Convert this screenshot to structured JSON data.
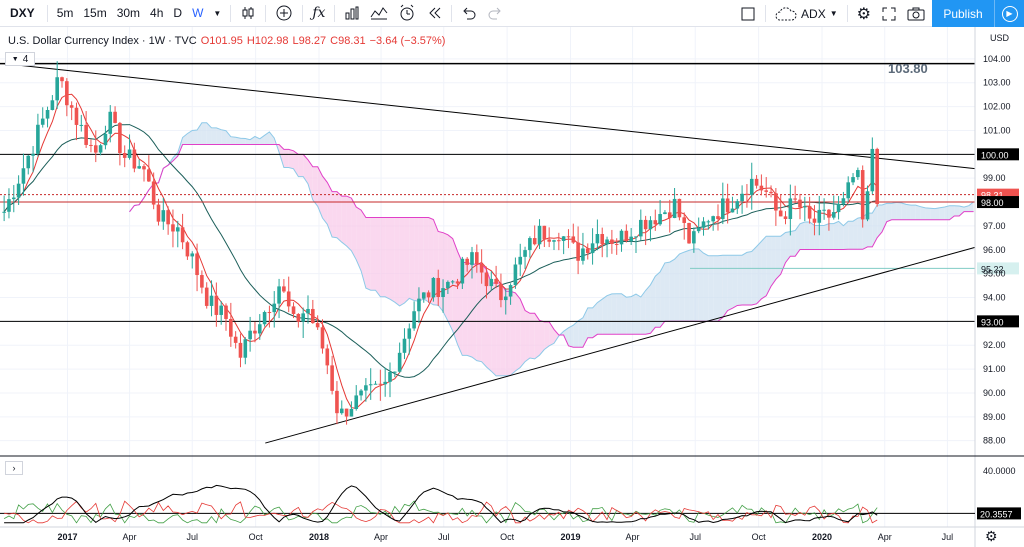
{
  "toolbar": {
    "symbol": "DXY",
    "intervals": [
      "5m",
      "15m",
      "30m",
      "4h",
      "D",
      "W"
    ],
    "active_interval": "W",
    "compare_label": "ADX",
    "publish_label": "Publish"
  },
  "legend": {
    "name": "U.S. Dollar Currency Index · 1W · TVC",
    "open": "O101.95",
    "high": "H102.98",
    "low": "L98.27",
    "close": "C98.31",
    "change": "−3.64 (−3.57%)"
  },
  "indicator_count": "4",
  "currency": "USD",
  "colors": {
    "up": "#26a69a",
    "down": "#ef5350",
    "cloud_green": "#cfe0f0",
    "cloud_red": "#f8c8e8",
    "ma_fast": "#e53935",
    "ma_slow": "#1b5e59",
    "span_a": "#8ec9e8",
    "span_b": "#e040c8",
    "trend": "#000000"
  },
  "chart_data": {
    "type": "candlestick",
    "title": "U.S. Dollar Currency Index · 1W · TVC",
    "ylim": [
      87.4,
      105.0
    ],
    "y_ticks": [
      88,
      89,
      90,
      91,
      92,
      93,
      94,
      95,
      96,
      97,
      98,
      99,
      100,
      101,
      102,
      103,
      104
    ],
    "y_tick_labels": [
      "88.00",
      "89.00",
      "90.00",
      "91.00",
      "92.00",
      "93.00",
      "94.00",
      "95.00",
      "96.00",
      "97.00",
      "98.00",
      "99.00",
      "100.00",
      "101.00",
      "102.00",
      "103.00",
      "104.00"
    ],
    "x_ticks": [
      {
        "date": "2017-01-01",
        "label": "2017"
      },
      {
        "date": "2017-04-01",
        "label": "Apr"
      },
      {
        "date": "2017-07-01",
        "label": "Jul"
      },
      {
        "date": "2017-10-01",
        "label": "Oct"
      },
      {
        "date": "2018-01-01",
        "label": "2018"
      },
      {
        "date": "2018-04-01",
        "label": "Apr"
      },
      {
        "date": "2018-07-01",
        "label": "Jul"
      },
      {
        "date": "2018-10-01",
        "label": "Oct"
      },
      {
        "date": "2019-01-01",
        "label": "2019"
      },
      {
        "date": "2019-04-01",
        "label": "Apr"
      },
      {
        "date": "2019-07-01",
        "label": "Jul"
      },
      {
        "date": "2019-10-01",
        "label": "Oct"
      },
      {
        "date": "2020-01-01",
        "label": "2020"
      },
      {
        "date": "2020-04-01",
        "label": "Apr"
      },
      {
        "date": "2020-07-01",
        "label": "Jul"
      }
    ],
    "price_path": [
      [
        "2016-10-01",
        97.6
      ],
      [
        "2016-11-15",
        100.6
      ],
      [
        "2016-12-20",
        103.2
      ],
      [
        "2017-01-15",
        101.4
      ],
      [
        "2017-02-10",
        100.0
      ],
      [
        "2017-03-01",
        101.6
      ],
      [
        "2017-03-25",
        99.9
      ],
      [
        "2017-04-20",
        99.5
      ],
      [
        "2017-05-15",
        97.3
      ],
      [
        "2017-06-10",
        96.9
      ],
      [
        "2017-07-01",
        95.6
      ],
      [
        "2017-07-25",
        93.8
      ],
      [
        "2017-08-20",
        93.1
      ],
      [
        "2017-09-08",
        91.5
      ],
      [
        "2017-09-25",
        92.6
      ],
      [
        "2017-10-20",
        93.7
      ],
      [
        "2017-11-05",
        94.6
      ],
      [
        "2017-11-25",
        92.9
      ],
      [
        "2017-12-15",
        93.6
      ],
      [
        "2018-01-10",
        91.6
      ],
      [
        "2018-01-30",
        89.0
      ],
      [
        "2018-02-15",
        89.5
      ],
      [
        "2018-03-10",
        89.9
      ],
      [
        "2018-04-05",
        90.2
      ],
      [
        "2018-04-25",
        91.6
      ],
      [
        "2018-05-20",
        93.6
      ],
      [
        "2018-06-15",
        94.4
      ],
      [
        "2018-07-10",
        94.6
      ],
      [
        "2018-08-10",
        95.6
      ],
      [
        "2018-08-30",
        94.9
      ],
      [
        "2018-09-20",
        94.0
      ],
      [
        "2018-10-15",
        95.3
      ],
      [
        "2018-11-15",
        96.7
      ],
      [
        "2018-12-15",
        96.8
      ],
      [
        "2019-01-10",
        95.8
      ],
      [
        "2019-02-10",
        96.7
      ],
      [
        "2019-03-10",
        96.4
      ],
      [
        "2019-04-10",
        97.1
      ],
      [
        "2019-05-10",
        97.5
      ],
      [
        "2019-06-01",
        97.9
      ],
      [
        "2019-06-25",
        96.2
      ],
      [
        "2019-07-20",
        97.4
      ],
      [
        "2019-08-20",
        98.0
      ],
      [
        "2019-09-20",
        98.9
      ],
      [
        "2019-10-10",
        98.5
      ],
      [
        "2019-10-30",
        97.4
      ],
      [
        "2019-11-25",
        98.0
      ],
      [
        "2019-12-15",
        97.1
      ],
      [
        "2020-01-10",
        97.4
      ],
      [
        "2020-02-01",
        97.9
      ],
      [
        "2020-02-20",
        99.4
      ],
      [
        "2020-03-01",
        96.9
      ],
      [
        "2020-03-12",
        99.2
      ],
      [
        "2020-03-17",
        101.9
      ],
      [
        "2020-03-21",
        98.3
      ]
    ],
    "horizontal_lines": [
      {
        "value": 103.8,
        "label": "103.80"
      },
      {
        "value": 100.0,
        "label": "100.00"
      },
      {
        "value": 98.31,
        "label": "98.31"
      },
      {
        "value": 98.0,
        "label": "98.00"
      },
      {
        "value": 95.22,
        "label": "95.22"
      },
      {
        "value": 93.0,
        "label": "93.00"
      }
    ],
    "trendlines": [
      {
        "from": [
          "2016-10-01",
          103.8
        ],
        "to": [
          "2020-08-10",
          99.4
        ]
      },
      {
        "from": [
          "2017-10-15",
          87.9
        ],
        "to": [
          "2020-08-10",
          96.1
        ]
      }
    ],
    "last_price": "98.31",
    "oscillator": {
      "ylim": [
        15,
        45
      ],
      "level": 20.3557,
      "level_label": "20.3557",
      "tick_label": "40.0000"
    }
  }
}
